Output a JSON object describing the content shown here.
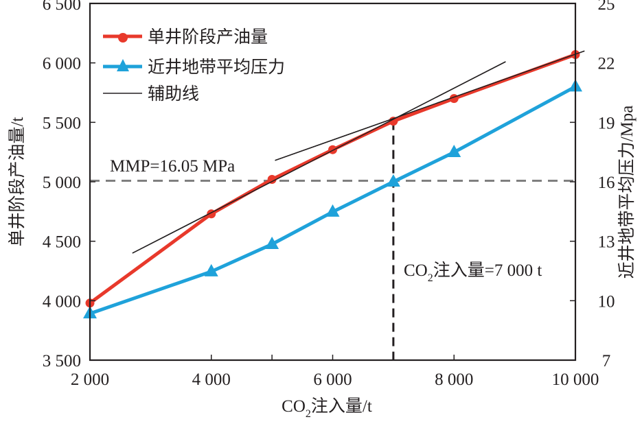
{
  "chart_data": {
    "type": "line",
    "title": "",
    "xlabel": "CO₂注入量/t",
    "xlabel_parts": {
      "prefix": "CO",
      "sub": "2",
      "suffix": "注入量/t"
    },
    "ylabel_left": "单井阶段产油量/t",
    "ylabel_right": "近井地带平均压力/Mpa",
    "xlim": [
      2000,
      10000
    ],
    "ylim_left": [
      3500,
      6500
    ],
    "ylim_right": [
      7,
      25
    ],
    "x_ticks": [
      2000,
      4000,
      6000,
      8000,
      10000
    ],
    "x_tick_labels": [
      "2 000",
      "4 000",
      "6 000",
      "8 000",
      "10 000"
    ],
    "x_minor_ticks": [
      5000,
      7000
    ],
    "y_left_ticks": [
      3500,
      4000,
      4500,
      5000,
      5500,
      6000,
      6500
    ],
    "y_left_tick_labels": [
      "3 500",
      "4 000",
      "4 500",
      "5 000",
      "5 500",
      "6 000",
      "6 500"
    ],
    "y_right_ticks": [
      7,
      10,
      13,
      16,
      19,
      22,
      25
    ],
    "y_right_tick_labels": [
      "7",
      "10",
      "13",
      "16",
      "19",
      "22",
      "25"
    ],
    "grid": false,
    "legend_position": "top-left",
    "series": [
      {
        "name": "单井阶段产油量",
        "axis": "left",
        "color": "#e8392b",
        "marker": "circle",
        "x": [
          2000,
          4000,
          5000,
          6000,
          7000,
          8000,
          10000
        ],
        "values": [
          3980,
          4730,
          5020,
          5270,
          5510,
          5700,
          6070
        ]
      },
      {
        "name": "近井地带平均压力",
        "axis": "right",
        "color": "#1fa2da",
        "marker": "triangle",
        "x": [
          2000,
          4000,
          5000,
          6000,
          7000,
          8000,
          10000
        ],
        "values": [
          9.35,
          11.47,
          12.85,
          14.48,
          16.0,
          17.49,
          20.8
        ]
      }
    ],
    "auxiliary_lines": {
      "name": "辅助线",
      "color": "#231f20",
      "lines": [
        {
          "x": [
            2700,
            8850
          ],
          "y_left": [
            4400,
            6010
          ]
        },
        {
          "x": [
            5050,
            10150
          ],
          "y_left": [
            5180,
            6100
          ]
        }
      ]
    },
    "reference_lines": [
      {
        "orientation": "horizontal",
        "axis": "right",
        "value": 16.05,
        "label": "MMP=16.05 MPa",
        "color": "#7f7f7f",
        "style": "dashed"
      },
      {
        "orientation": "vertical",
        "value": 7000,
        "label_parts": {
          "prefix": "CO",
          "sub": "2",
          "suffix": "注入量=7 000 t"
        },
        "color": "#231f20",
        "style": "dashed"
      }
    ],
    "legend": [
      {
        "label": "单井阶段产油量",
        "color": "#e8392b",
        "marker": "circle"
      },
      {
        "label": "近井地带平均压力",
        "color": "#1fa2da",
        "marker": "triangle"
      },
      {
        "label": "辅助线",
        "color": "#231f20",
        "marker": "none"
      }
    ]
  }
}
